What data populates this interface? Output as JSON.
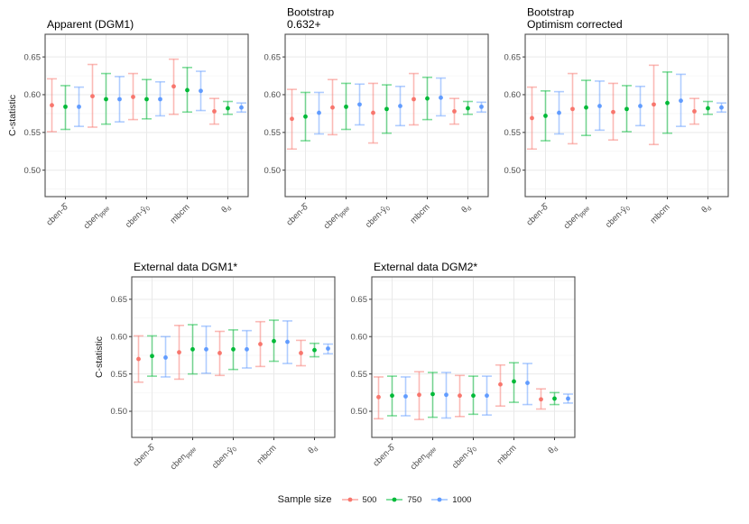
{
  "figure": {
    "ylabel": "C-statistic",
    "legend": {
      "title": "Sample size",
      "entries": [
        {
          "label": "500",
          "color": "#F8766D"
        },
        {
          "label": "750",
          "color": "#00BA38"
        },
        {
          "label": "1000",
          "color": "#619CFF"
        }
      ]
    }
  },
  "chart_data": [
    {
      "type": "pointrange",
      "name": "apparent-dgm1",
      "title_lines": [
        "Apparent (DGM1)"
      ],
      "ylabel": "C-statistic",
      "ylim": [
        0.465,
        0.68
      ],
      "yticks": [
        0.5,
        0.55,
        0.6,
        0.65
      ],
      "categories": [
        "cben-δ̂",
        "cben_ppte",
        "cben-ŷ_0",
        "mbcm",
        "θ_d"
      ],
      "series": [
        {
          "name": "500",
          "color": "#F8766D",
          "values": [
            [
              0.586,
              0.551,
              0.621
            ],
            [
              0.598,
              0.557,
              0.64
            ],
            [
              0.597,
              0.567,
              0.628
            ],
            [
              0.611,
              0.574,
              0.647
            ],
            [
              0.578,
              0.561,
              0.595
            ]
          ]
        },
        {
          "name": "750",
          "color": "#00BA38",
          "values": [
            [
              0.584,
              0.554,
              0.612
            ],
            [
              0.594,
              0.561,
              0.628
            ],
            [
              0.594,
              0.568,
              0.62
            ],
            [
              0.606,
              0.577,
              0.636
            ],
            [
              0.582,
              0.574,
              0.591
            ]
          ]
        },
        {
          "name": "1000",
          "color": "#619CFF",
          "values": [
            [
              0.584,
              0.558,
              0.61
            ],
            [
              0.594,
              0.564,
              0.624
            ],
            [
              0.594,
              0.572,
              0.617
            ],
            [
              0.605,
              0.579,
              0.631
            ],
            [
              0.583,
              0.577,
              0.589
            ]
          ]
        }
      ]
    },
    {
      "type": "pointrange",
      "name": "bootstrap-632",
      "title_lines": [
        "Bootstrap",
        "0.632+"
      ],
      "ylabel": "",
      "ylim": [
        0.465,
        0.68
      ],
      "yticks": [
        0.5,
        0.55,
        0.6,
        0.65
      ],
      "categories": [
        "cben-δ̂",
        "cben_ppte",
        "cben-ŷ_0",
        "mbcm",
        "θ_d"
      ],
      "series": [
        {
          "name": "500",
          "color": "#F8766D",
          "values": [
            [
              0.568,
              0.528,
              0.607
            ],
            [
              0.583,
              0.547,
              0.62
            ],
            [
              0.576,
              0.536,
              0.615
            ],
            [
              0.594,
              0.56,
              0.628
            ],
            [
              0.578,
              0.561,
              0.595
            ]
          ]
        },
        {
          "name": "750",
          "color": "#00BA38",
          "values": [
            [
              0.571,
              0.539,
              0.603
            ],
            [
              0.584,
              0.554,
              0.615
            ],
            [
              0.581,
              0.549,
              0.613
            ],
            [
              0.595,
              0.567,
              0.623
            ],
            [
              0.582,
              0.574,
              0.591
            ]
          ]
        },
        {
          "name": "1000",
          "color": "#619CFF",
          "values": [
            [
              0.576,
              0.548,
              0.603
            ],
            [
              0.587,
              0.56,
              0.614
            ],
            [
              0.585,
              0.559,
              0.611
            ],
            [
              0.596,
              0.572,
              0.622
            ],
            [
              0.584,
              0.577,
              0.59
            ]
          ]
        }
      ]
    },
    {
      "type": "pointrange",
      "name": "bootstrap-optimism-corrected",
      "title_lines": [
        "Bootstrap",
        "Optimism corrected"
      ],
      "ylabel": "",
      "ylim": [
        0.465,
        0.68
      ],
      "yticks": [
        0.5,
        0.55,
        0.6,
        0.65
      ],
      "categories": [
        "cben-δ̂",
        "cben_ppte",
        "cben-ŷ_0",
        "mbcm",
        "θ_d"
      ],
      "series": [
        {
          "name": "500",
          "color": "#F8766D",
          "values": [
            [
              0.569,
              0.528,
              0.61
            ],
            [
              0.581,
              0.535,
              0.628
            ],
            [
              0.577,
              0.54,
              0.615
            ],
            [
              0.587,
              0.534,
              0.639
            ],
            [
              0.578,
              0.561,
              0.595
            ]
          ]
        },
        {
          "name": "750",
          "color": "#00BA38",
          "values": [
            [
              0.572,
              0.539,
              0.605
            ],
            [
              0.583,
              0.546,
              0.619
            ],
            [
              0.581,
              0.551,
              0.612
            ],
            [
              0.589,
              0.549,
              0.63
            ],
            [
              0.582,
              0.574,
              0.591
            ]
          ]
        },
        {
          "name": "1000",
          "color": "#619CFF",
          "values": [
            [
              0.576,
              0.548,
              0.604
            ],
            [
              0.585,
              0.553,
              0.618
            ],
            [
              0.585,
              0.559,
              0.611
            ],
            [
              0.592,
              0.558,
              0.627
            ],
            [
              0.583,
              0.577,
              0.589
            ]
          ]
        }
      ]
    },
    {
      "type": "pointrange",
      "name": "external-dgm1",
      "title_lines": [
        "External data DGM1*"
      ],
      "ylabel": "C-statistic",
      "ylim": [
        0.465,
        0.68
      ],
      "yticks": [
        0.5,
        0.55,
        0.6,
        0.65
      ],
      "categories": [
        "cben-δ̂",
        "cben_ppte",
        "cben-ŷ_0",
        "mbcm",
        "θ_d"
      ],
      "series": [
        {
          "name": "500",
          "color": "#F8766D",
          "values": [
            [
              0.57,
              0.539,
              0.601
            ],
            [
              0.579,
              0.543,
              0.615
            ],
            [
              0.578,
              0.548,
              0.607
            ],
            [
              0.59,
              0.56,
              0.62
            ],
            [
              0.578,
              0.561,
              0.595
            ]
          ]
        },
        {
          "name": "750",
          "color": "#00BA38",
          "values": [
            [
              0.574,
              0.547,
              0.601
            ],
            [
              0.583,
              0.55,
              0.616
            ],
            [
              0.583,
              0.556,
              0.609
            ],
            [
              0.594,
              0.567,
              0.622
            ],
            [
              0.582,
              0.573,
              0.591
            ]
          ]
        },
        {
          "name": "1000",
          "color": "#619CFF",
          "values": [
            [
              0.572,
              0.546,
              0.6
            ],
            [
              0.583,
              0.551,
              0.614
            ],
            [
              0.583,
              0.558,
              0.608
            ],
            [
              0.593,
              0.564,
              0.621
            ],
            [
              0.584,
              0.577,
              0.59
            ]
          ]
        }
      ]
    },
    {
      "type": "pointrange",
      "name": "external-dgm2",
      "title_lines": [
        "External data DGM2*"
      ],
      "ylabel": "",
      "ylim": [
        0.465,
        0.68
      ],
      "yticks": [
        0.5,
        0.55,
        0.6,
        0.65
      ],
      "categories": [
        "cben-δ̂",
        "cben_ppte",
        "cben-ŷ_0",
        "mbcm",
        "θ_d"
      ],
      "series": [
        {
          "name": "500",
          "color": "#F8766D",
          "values": [
            [
              0.519,
              0.49,
              0.546
            ],
            [
              0.522,
              0.489,
              0.553
            ],
            [
              0.521,
              0.493,
              0.548
            ],
            [
              0.536,
              0.507,
              0.562
            ],
            [
              0.516,
              0.503,
              0.53
            ]
          ]
        },
        {
          "name": "750",
          "color": "#00BA38",
          "values": [
            [
              0.521,
              0.494,
              0.547
            ],
            [
              0.523,
              0.492,
              0.552
            ],
            [
              0.521,
              0.496,
              0.547
            ],
            [
              0.54,
              0.512,
              0.565
            ],
            [
              0.517,
              0.509,
              0.525
            ]
          ]
        },
        {
          "name": "1000",
          "color": "#619CFF",
          "values": [
            [
              0.52,
              0.494,
              0.546
            ],
            [
              0.522,
              0.491,
              0.552
            ],
            [
              0.521,
              0.495,
              0.547
            ],
            [
              0.538,
              0.509,
              0.564
            ],
            [
              0.517,
              0.511,
              0.523
            ]
          ]
        }
      ]
    }
  ]
}
